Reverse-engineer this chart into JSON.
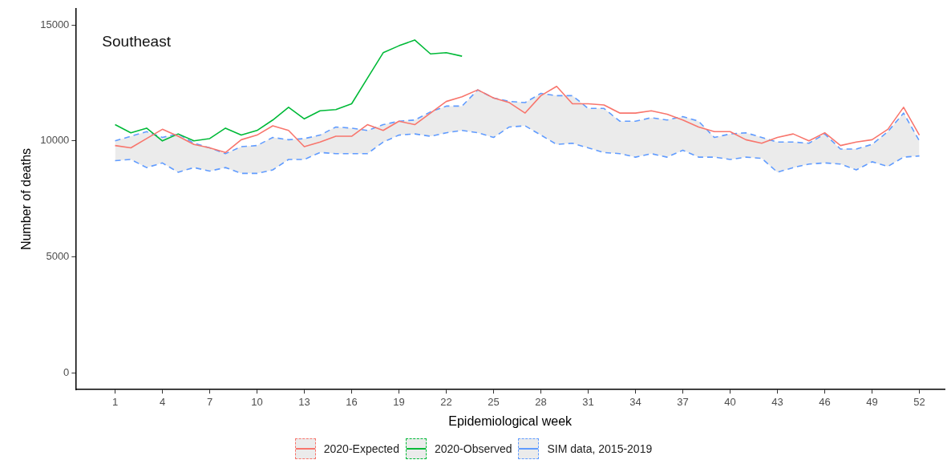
{
  "chart_data": {
    "type": "line",
    "title": "Southeast",
    "xlabel": "Epidemiological week",
    "ylabel": "Number of deaths",
    "x": [
      1,
      2,
      3,
      4,
      5,
      6,
      7,
      8,
      9,
      10,
      11,
      12,
      13,
      14,
      15,
      16,
      17,
      18,
      19,
      20,
      21,
      22,
      23,
      24,
      25,
      26,
      27,
      28,
      29,
      30,
      31,
      32,
      33,
      34,
      35,
      36,
      37,
      38,
      39,
      40,
      41,
      42,
      43,
      44,
      45,
      46,
      47,
      48,
      49,
      50,
      51,
      52
    ],
    "xlim": [
      -1.5,
      53.6
    ],
    "xticks": [
      1,
      4,
      7,
      10,
      13,
      16,
      19,
      22,
      25,
      28,
      31,
      34,
      37,
      40,
      43,
      46,
      49,
      52
    ],
    "ylim": [
      -720,
      15700
    ],
    "yticks": [
      0,
      5000,
      10000,
      15000
    ],
    "grid": false,
    "legend": "bottom",
    "series": [
      {
        "name": "2020-Expected",
        "type": "line",
        "color": "#f8766d",
        "values": [
          9800,
          9700,
          10100,
          10500,
          10200,
          9850,
          9700,
          9500,
          10050,
          10250,
          10650,
          10450,
          9750,
          9950,
          10200,
          10200,
          10700,
          10450,
          10850,
          10700,
          11200,
          11700,
          11900,
          12200,
          11850,
          11650,
          11200,
          11950,
          12350,
          11600,
          11600,
          11550,
          11200,
          11200,
          11300,
          11150,
          10900,
          10600,
          10400,
          10400,
          10050,
          9900,
          10150,
          10300,
          10000,
          10350,
          9800,
          9950,
          10050,
          10500,
          11450,
          10250
        ]
      },
      {
        "name": "2020-Observed",
        "type": "line",
        "color": "#00ba38",
        "values": [
          10700,
          10350,
          10550,
          10000,
          10300,
          10000,
          10100,
          10550,
          10250,
          10450,
          10900,
          11450,
          10950,
          11300,
          11350,
          11600,
          12700,
          13800,
          14100,
          14350,
          13750,
          13800,
          13650,
          null,
          null,
          null,
          null,
          null,
          null,
          null,
          null,
          null,
          null,
          null,
          null,
          null,
          null,
          null,
          null,
          null,
          null,
          null,
          null,
          null,
          null,
          null,
          null,
          null,
          null,
          null,
          null,
          null
        ]
      },
      {
        "name": "SIM data, 2015-2019",
        "type": "line",
        "color": "#619cff",
        "line_style": "dashed",
        "values": [
          10000,
          10200,
          10400,
          10150,
          10300,
          9900,
          9700,
          9450,
          9750,
          9800,
          10150,
          10050,
          10100,
          10250,
          10600,
          10550,
          10450,
          10700,
          10850,
          10900,
          11250,
          11500,
          11500,
          12200,
          11850,
          11700,
          11650,
          12050,
          11950,
          11950,
          11400,
          11400,
          10850,
          10850,
          11000,
          10900,
          11050,
          10850,
          10150,
          10300,
          10350,
          10150,
          9950,
          9950,
          9900,
          10300,
          9650,
          9650,
          9850,
          10400,
          11200,
          10000
        ],
        "upper": [
          10000,
          10200,
          10400,
          10150,
          10300,
          9900,
          9700,
          9450,
          9750,
          9800,
          10150,
          10050,
          10100,
          10250,
          10600,
          10550,
          10450,
          10700,
          10850,
          10900,
          11250,
          11500,
          11500,
          12200,
          11850,
          11700,
          11650,
          12050,
          11950,
          11950,
          11400,
          11400,
          10850,
          10850,
          11000,
          10900,
          11050,
          10850,
          10150,
          10300,
          10350,
          10150,
          9950,
          9950,
          9900,
          10300,
          9650,
          9650,
          9850,
          10400,
          11200,
          10000
        ],
        "lower": [
          9150,
          9200,
          8850,
          9050,
          8650,
          8850,
          8700,
          8850,
          8600,
          8600,
          8750,
          9200,
          9200,
          9500,
          9450,
          9450,
          9450,
          9950,
          10250,
          10300,
          10200,
          10350,
          10450,
          10350,
          10150,
          10600,
          10650,
          10250,
          9850,
          9900,
          9700,
          9500,
          9450,
          9300,
          9450,
          9300,
          9600,
          9300,
          9300,
          9200,
          9300,
          9250,
          8650,
          8850,
          9000,
          9050,
          9000,
          8750,
          9100,
          8900,
          9300,
          9350
        ]
      },
      {
        "type": "line",
        "color": "#619cff",
        "line_style": "dashed",
        "values": [
          9150,
          9200,
          8850,
          9050,
          8650,
          8850,
          8700,
          8850,
          8600,
          8600,
          8750,
          9200,
          9200,
          9500,
          9450,
          9450,
          9450,
          9950,
          10250,
          10300,
          10200,
          10350,
          10450,
          10350,
          10150,
          10600,
          10650,
          10250,
          9850,
          9900,
          9700,
          9500,
          9450,
          9300,
          9450,
          9300,
          9600,
          9300,
          9300,
          9200,
          9300,
          9250,
          8650,
          8850,
          9000,
          9050,
          9000,
          8750,
          9100,
          8900,
          9300,
          9350
        ]
      }
    ]
  }
}
